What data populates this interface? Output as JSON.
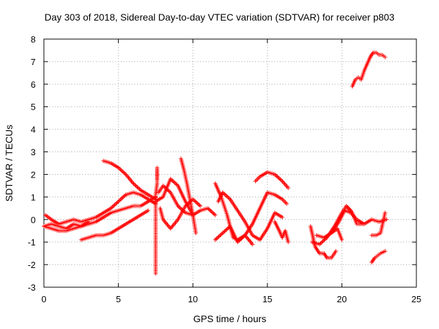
{
  "chart_data": {
    "type": "scatter",
    "title": "Day 303 of 2018, Sidereal Day-to-day VTEC variation (SDTVAR) for receiver p803",
    "xlabel": "GPS time / hours",
    "ylabel": "SDTVAR / TECUs",
    "xlim": [
      0,
      25
    ],
    "ylim": [
      -3,
      8
    ],
    "xticks": [
      0,
      5,
      10,
      15,
      20,
      25
    ],
    "yticks": [
      -3,
      -2,
      -1,
      0,
      1,
      2,
      3,
      4,
      5,
      6,
      7,
      8
    ],
    "xtick_labels": [
      "0",
      "5",
      "10",
      "15",
      "20",
      "25"
    ],
    "ytick_labels": [
      "-3",
      "-2",
      "-1",
      "0",
      "1",
      "2",
      "3",
      "4",
      "5",
      "6",
      "7",
      "8"
    ],
    "grid": true,
    "marker": "+",
    "color": "#ff0000",
    "series": [
      {
        "name": "s1",
        "x": [
          0.0,
          0.5,
          1.0,
          1.5,
          2.0,
          2.5,
          3.0,
          3.5,
          4.0,
          4.5,
          5.0,
          5.5,
          6.0,
          6.5,
          7.0,
          7.5
        ],
        "y": [
          -0.3,
          -0.4,
          -0.5,
          -0.5,
          -0.4,
          -0.3,
          -0.2,
          -0.1,
          0.1,
          0.3,
          0.4,
          0.5,
          0.6,
          0.6,
          0.8,
          1.0
        ]
      },
      {
        "name": "s2",
        "x": [
          0.1,
          0.5,
          1.0,
          1.5,
          2.0,
          2.5,
          3.0,
          3.5,
          4.0,
          4.5,
          5.0,
          5.5,
          6.0,
          6.5,
          7.0,
          7.5
        ],
        "y": [
          0.2,
          0.0,
          -0.2,
          -0.1,
          0.0,
          -0.1,
          0.0,
          0.1,
          0.3,
          0.5,
          0.8,
          1.1,
          1.2,
          1.1,
          0.9,
          0.7
        ]
      },
      {
        "name": "s3",
        "x": [
          2.5,
          3.0,
          3.5,
          4.0,
          4.5,
          5.0,
          5.5,
          6.0,
          6.5,
          7.0
        ],
        "y": [
          -0.9,
          -0.8,
          -0.7,
          -0.7,
          -0.6,
          -0.4,
          -0.2,
          0.0,
          0.2,
          0.4
        ]
      },
      {
        "name": "s4",
        "x": [
          0.0,
          0.5,
          1.0,
          1.5,
          2.0,
          2.5,
          3.0
        ],
        "y": [
          -0.3,
          -0.2,
          -0.3,
          -0.4,
          -0.2,
          -0.3,
          -0.1
        ]
      },
      {
        "name": "s5",
        "x": [
          4.0,
          4.5,
          5.0,
          5.5,
          6.0,
          6.5,
          7.0,
          7.5
        ],
        "y": [
          2.6,
          2.5,
          2.3,
          2.0,
          1.6,
          1.3,
          1.1,
          0.9
        ]
      },
      {
        "name": "s6",
        "x": [
          7.5,
          7.5,
          7.5,
          7.5,
          7.5,
          7.5,
          7.5,
          7.5,
          7.6,
          7.6,
          7.6,
          7.6
        ],
        "y": [
          -2.4,
          -1.9,
          -1.4,
          -0.9,
          -0.4,
          0.1,
          0.6,
          1.1,
          1.6,
          2.1,
          2.3,
          1.8
        ]
      },
      {
        "name": "s7",
        "x": [
          7.7,
          8.0,
          8.5,
          9.0,
          9.5,
          10.0,
          10.5,
          11.0,
          11.5
        ],
        "y": [
          1.2,
          1.5,
          1.2,
          0.6,
          0.3,
          0.2,
          0.4,
          0.5,
          0.2
        ]
      },
      {
        "name": "s8",
        "x": [
          7.8,
          8.0,
          8.5,
          9.0,
          9.5,
          10.0,
          10.5
        ],
        "y": [
          0.5,
          0.0,
          -0.4,
          0.0,
          0.6,
          0.9,
          0.6
        ]
      },
      {
        "name": "s9",
        "x": [
          9.2,
          9.4,
          9.6,
          9.8,
          10.0,
          10.2
        ],
        "y": [
          2.7,
          2.2,
          1.6,
          0.9,
          0.2,
          -0.6
        ]
      },
      {
        "name": "s10",
        "x": [
          7.5,
          8.0,
          8.5,
          9.0,
          9.5,
          10.0
        ],
        "y": [
          0.8,
          1.0,
          1.8,
          1.5,
          0.8,
          0.2
        ]
      },
      {
        "name": "s11",
        "x": [
          11.5,
          11.7,
          11.9,
          12.1,
          12.3,
          12.5,
          12.7,
          13.0,
          13.5,
          14.0,
          14.5,
          15.0,
          15.5,
          16.0,
          16.3
        ],
        "y": [
          1.6,
          1.3,
          1.0,
          0.6,
          0.2,
          -0.3,
          -0.8,
          -0.9,
          -0.7,
          -0.2,
          0.5,
          1.2,
          1.1,
          0.9,
          0.7
        ]
      },
      {
        "name": "s12",
        "x": [
          11.7,
          12.0,
          12.5,
          13.0,
          13.5,
          14.0,
          14.5,
          15.0,
          15.5,
          16.0
        ],
        "y": [
          0.8,
          1.2,
          0.9,
          0.4,
          -0.1,
          -0.7,
          -0.9,
          -0.4,
          0.3,
          0.1
        ]
      },
      {
        "name": "s13",
        "x": [
          11.5,
          12.0,
          12.5,
          13.0,
          13.5,
          14.0
        ],
        "y": [
          -0.9,
          -0.6,
          -0.3,
          -1.0,
          -0.7,
          -1.1
        ]
      },
      {
        "name": "s14",
        "x": [
          14.2,
          14.5,
          15.0,
          15.5,
          16.0,
          16.4
        ],
        "y": [
          1.7,
          1.9,
          2.1,
          2.0,
          1.7,
          1.4
        ]
      },
      {
        "name": "s15",
        "x": [
          15.5,
          15.8,
          16.0,
          16.2,
          16.4
        ],
        "y": [
          -0.1,
          -0.5,
          -0.8,
          -0.5,
          -1.0
        ]
      },
      {
        "name": "s16",
        "x": [
          17.9,
          18.0,
          18.1,
          18.2,
          18.3,
          18.5,
          18.8,
          19.0,
          19.3,
          19.6
        ],
        "y": [
          -0.3,
          -0.6,
          -0.9,
          -1.2,
          -1.3,
          -1.5,
          -1.5,
          -1.7,
          -1.7,
          -1.4
        ]
      },
      {
        "name": "s17",
        "x": [
          18.0,
          18.5,
          19.0,
          19.5,
          20.0,
          20.3,
          20.6
        ],
        "y": [
          -1.0,
          -1.1,
          -0.8,
          -0.3,
          0.3,
          0.6,
          0.4
        ]
      },
      {
        "name": "s18",
        "x": [
          18.3,
          18.8,
          19.3,
          19.7,
          20.0
        ],
        "y": [
          -0.7,
          -0.8,
          -0.6,
          -0.4,
          -0.9
        ]
      },
      {
        "name": "s19",
        "x": [
          19.4,
          19.8,
          20.2,
          20.6,
          21.0,
          21.5,
          22.0,
          22.5,
          23.0
        ],
        "y": [
          -0.5,
          -0.1,
          0.4,
          0.3,
          0.0,
          -0.2,
          0.0,
          -0.1,
          0.0
        ]
      },
      {
        "name": "s20",
        "x": [
          20.3,
          20.7,
          21.0,
          21.4
        ],
        "y": [
          0.6,
          0.3,
          -0.2,
          -0.2
        ]
      },
      {
        "name": "s21",
        "x": [
          22.0,
          22.3,
          22.6,
          22.9
        ],
        "y": [
          -0.7,
          -0.7,
          -0.6,
          0.3
        ]
      },
      {
        "name": "s22",
        "x": [
          22.0,
          22.2,
          22.4,
          22.6,
          22.9
        ],
        "y": [
          -1.9,
          -1.7,
          -1.6,
          -1.5,
          -1.4
        ]
      },
      {
        "name": "s23",
        "x": [
          20.7,
          20.9,
          21.1,
          21.3,
          21.5,
          21.7,
          21.9,
          22.1,
          22.3,
          22.5,
          22.7,
          22.9
        ],
        "y": [
          5.9,
          6.2,
          6.3,
          6.2,
          6.6,
          6.9,
          7.2,
          7.4,
          7.4,
          7.3,
          7.3,
          7.2
        ]
      }
    ]
  }
}
